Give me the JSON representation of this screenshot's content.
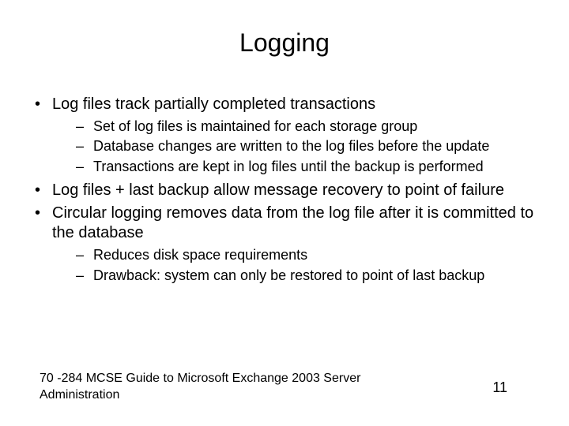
{
  "title": "Logging",
  "bullets": [
    {
      "text": "Log files track partially completed transactions",
      "sub": [
        "Set of log files is maintained for each storage group",
        "Database changes are written to the log files before the update",
        "Transactions are kept in log files until the backup is performed"
      ]
    },
    {
      "text": "Log files + last backup allow message recovery to point of failure",
      "sub": []
    },
    {
      "text": "Circular logging removes data from the log file after it is committed to the database",
      "sub": [
        "Reduces disk space requirements",
        "Drawback: system can only be restored to point of last backup"
      ]
    }
  ],
  "footer": "70 -284 MCSE Guide to Microsoft Exchange 2003 Server Administration",
  "page_number": "11",
  "style": {
    "background_color": "#ffffff",
    "text_color": "#000000",
    "title_fontsize": 32,
    "level1_fontsize": 20,
    "level2_fontsize": 18,
    "footer_fontsize": 16,
    "pagenum_fontsize": 18,
    "font_family": "Arial"
  }
}
